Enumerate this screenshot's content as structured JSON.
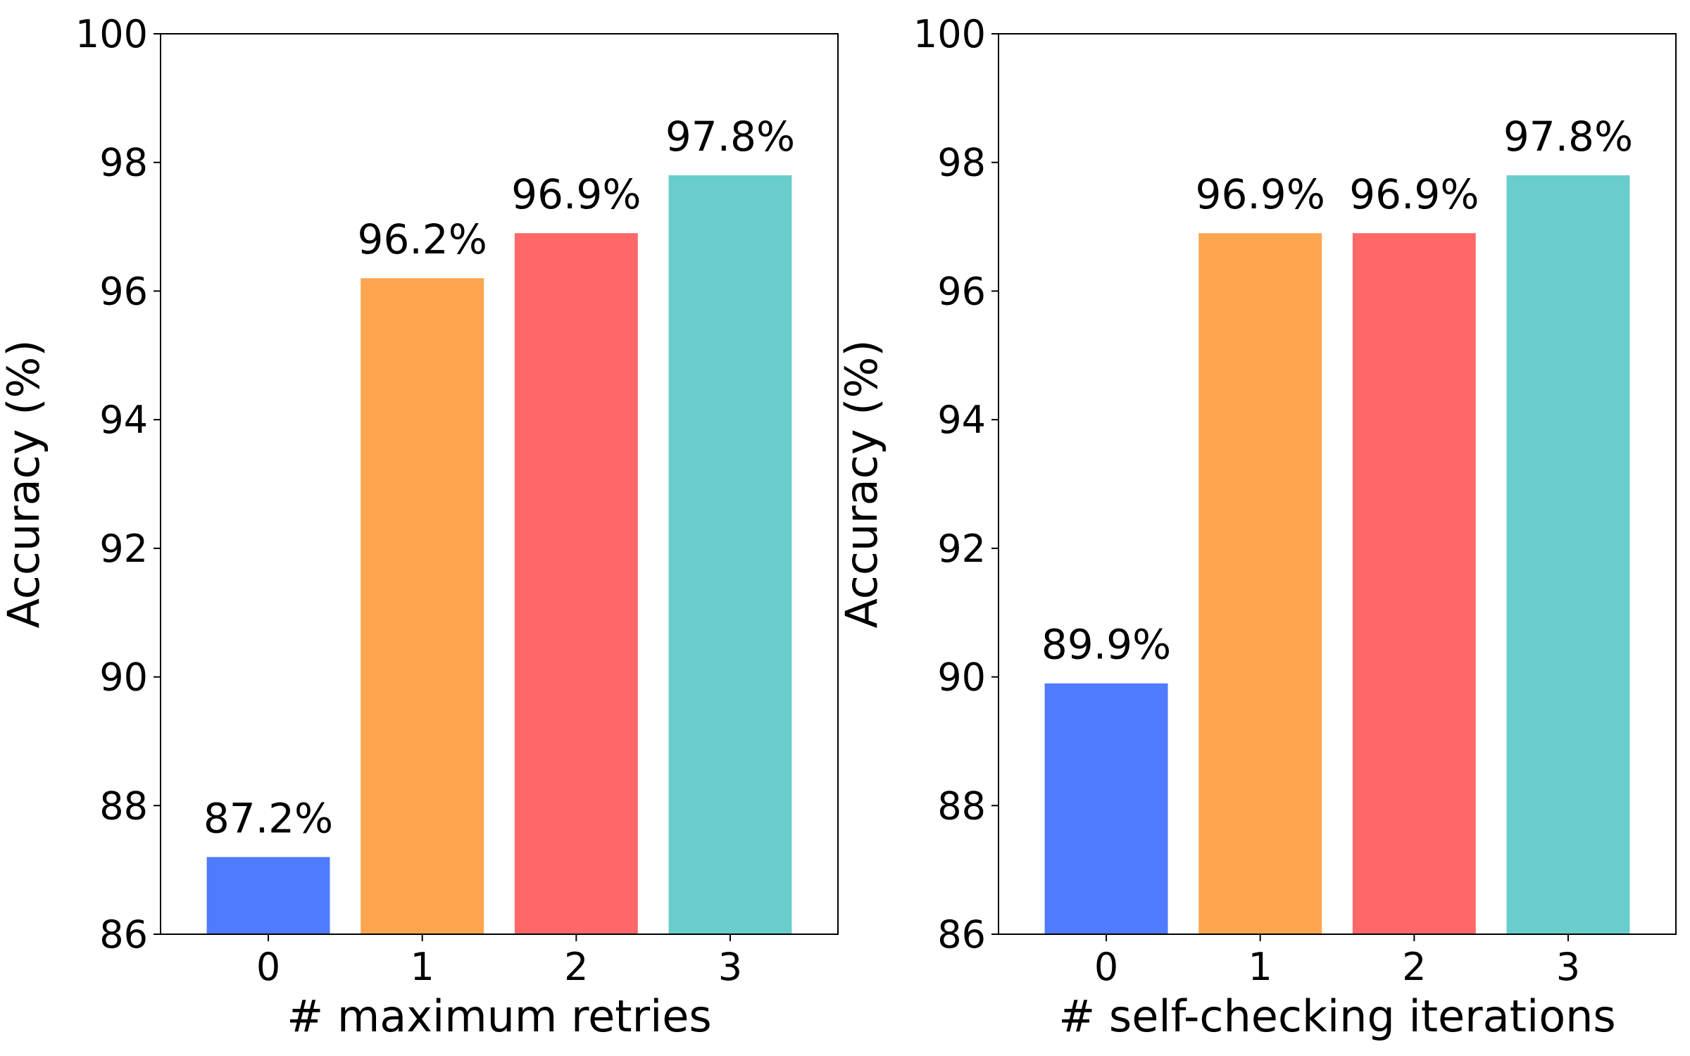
{
  "chart_data": [
    {
      "type": "bar",
      "categories": [
        "0",
        "1",
        "2",
        "3"
      ],
      "values": [
        87.2,
        96.2,
        96.9,
        97.8
      ],
      "data_labels": [
        "87.2%",
        "96.2%",
        "96.9%",
        "97.8%"
      ],
      "colors": [
        "#4f7bff",
        "#ffa54f",
        "#ff6868",
        "#69cdcb"
      ],
      "xlabel": "# maximum retries",
      "ylabel": "Accuracy (%)",
      "ylim": [
        86,
        100
      ],
      "yticks": [
        "86",
        "88",
        "90",
        "92",
        "94",
        "96",
        "98",
        "100"
      ],
      "grid": false,
      "legend": false
    },
    {
      "type": "bar",
      "categories": [
        "0",
        "1",
        "2",
        "3"
      ],
      "values": [
        89.9,
        96.9,
        96.9,
        97.8
      ],
      "data_labels": [
        "89.9%",
        "96.9%",
        "96.9%",
        "97.8%"
      ],
      "colors": [
        "#4f7bff",
        "#ffa54f",
        "#ff6868",
        "#69cdcb"
      ],
      "xlabel": "# self-checking iterations",
      "ylabel": "Accuracy (%)",
      "ylim": [
        86,
        100
      ],
      "yticks": [
        "86",
        "88",
        "90",
        "92",
        "94",
        "96",
        "98",
        "100"
      ],
      "grid": false,
      "legend": false
    }
  ]
}
